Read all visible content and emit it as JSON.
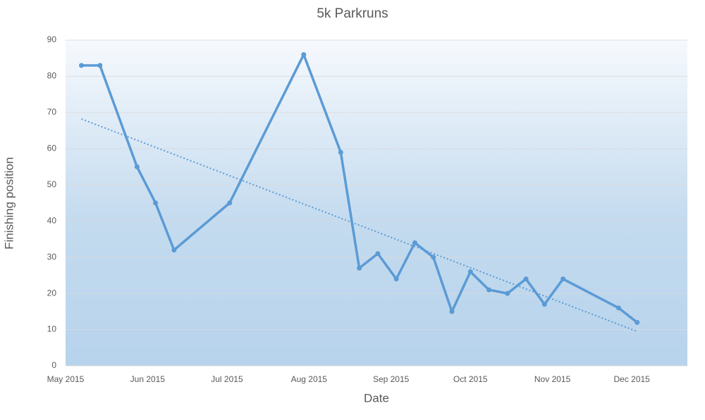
{
  "chart_data": {
    "type": "line",
    "title": "5k Parkruns",
    "x_label": "Date",
    "y_label": "Finishing position",
    "x": [
      42131,
      42138,
      42152,
      42159,
      42166,
      42187,
      42215,
      42229,
      42236,
      42243,
      42250,
      42257,
      42264,
      42271,
      42278,
      42285,
      42292,
      42299,
      42306,
      42313,
      42334,
      42341
    ],
    "series": [
      {
        "color": "#5b9bd5",
        "values": [
          83,
          83,
          55,
          45,
          32,
          45,
          86,
          59,
          27,
          31,
          24,
          34,
          30,
          15,
          26,
          21,
          20,
          24,
          17,
          24,
          16,
          12
        ]
      }
    ],
    "trendline": {
      "color": "#5b9bd5",
      "x": [
        42131,
        42341
      ],
      "values": [
        68.2,
        9.5
      ]
    },
    "xlim": [
      42125,
      42360
    ],
    "xticks": [
      {
        "value": 42125,
        "label": "May 2015"
      },
      {
        "value": 42156,
        "label": "Jun 2015"
      },
      {
        "value": 42186,
        "label": "Jul 2015"
      },
      {
        "value": 42217,
        "label": "Aug 2015"
      },
      {
        "value": 42248,
        "label": "Sep 2015"
      },
      {
        "value": 42278,
        "label": "Oct 2015"
      },
      {
        "value": 42309,
        "label": "Nov 2015"
      },
      {
        "value": 42339,
        "label": "Dec 2015"
      }
    ],
    "ylim": [
      0,
      90
    ],
    "yticks": [
      0,
      10,
      20,
      30,
      40,
      50,
      60,
      70,
      80,
      90
    ],
    "grid": true
  }
}
